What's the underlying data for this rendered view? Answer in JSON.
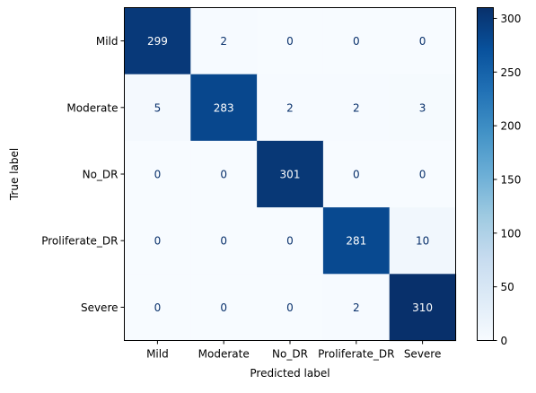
{
  "chart_data": {
    "type": "heatmap",
    "xlabel": "Predicted label",
    "ylabel": "True label",
    "x_categories": [
      "Mild",
      "Moderate",
      "No_DR",
      "Proliferate_DR",
      "Severe"
    ],
    "y_categories": [
      "Mild",
      "Moderate",
      "No_DR",
      "Proliferate_DR",
      "Severe"
    ],
    "values": [
      [
        299,
        2,
        0,
        0,
        0
      ],
      [
        5,
        283,
        2,
        2,
        3
      ],
      [
        0,
        0,
        301,
        0,
        0
      ],
      [
        0,
        0,
        0,
        281,
        10
      ],
      [
        0,
        0,
        0,
        2,
        310
      ]
    ],
    "colormap": "Blues",
    "colorbar": {
      "vmin": 0,
      "vmax": 310,
      "ticks": [
        0,
        50,
        100,
        150,
        200,
        250,
        300
      ],
      "tick_labels": [
        "0",
        "50",
        "100",
        "150",
        "200",
        "250",
        "300"
      ]
    },
    "grid": false
  }
}
